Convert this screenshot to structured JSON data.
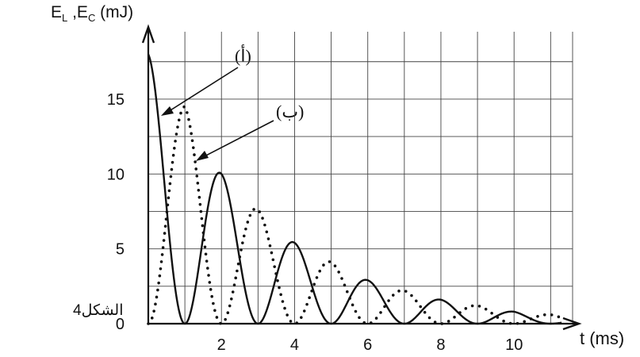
{
  "chart_data": {
    "type": "line",
    "ylabel_parts": {
      "a": "E",
      "a_sub": "L",
      "sep": " ,",
      "b": "E",
      "b_sub": "C",
      "unit": " (mJ)"
    },
    "xlabel": "t (ms)",
    "caption": "الشكل4",
    "xlim": [
      0,
      11.6
    ],
    "ylim": [
      0,
      19.5
    ],
    "xticks": [
      "2",
      "4",
      "6",
      "8",
      "10"
    ],
    "xtick_values": [
      2,
      4,
      6,
      8,
      10
    ],
    "yticks": [
      "0",
      "5",
      "10",
      "15"
    ],
    "ytick_values": [
      0,
      5,
      10,
      15
    ],
    "grid": true,
    "series": [
      {
        "name": "(أ)",
        "style": "solid",
        "color": "#111111",
        "peaks_t": [
          0,
          2,
          4,
          6,
          8,
          10
        ],
        "peaks_E": [
          18,
          10,
          5.4,
          2.9,
          1.6,
          0.8
        ],
        "zeros_t": [
          1,
          3,
          5,
          7,
          9,
          11
        ]
      },
      {
        "name": "(ب)",
        "style": "dotted",
        "color": "#111111",
        "peaks_t": [
          1,
          3,
          5,
          7,
          9,
          11
        ],
        "peaks_E": [
          14.5,
          7.6,
          4.1,
          2.2,
          1.2,
          0.6
        ],
        "zeros_t": [
          0,
          2,
          4,
          6,
          8,
          10
        ]
      }
    ]
  }
}
